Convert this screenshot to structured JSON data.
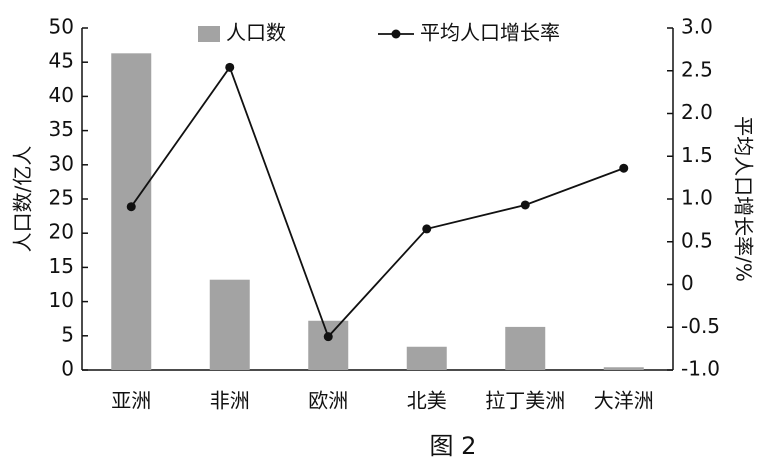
{
  "chart_data": {
    "type": "bar_line",
    "xlabel_caption": "图 2",
    "ylabel": "人口数/亿人",
    "y2label": "平均人口增长率/%",
    "categories": [
      "亚洲",
      "非洲",
      "欧洲",
      "北美",
      "拉丁美洲",
      "大洋洲"
    ],
    "series": [
      {
        "name": "人口数",
        "type": "bar",
        "color": "#a3a3a3",
        "values": [
          46.3,
          13.2,
          7.2,
          3.4,
          6.3,
          0.4
        ]
      },
      {
        "name": "平均人口增长率",
        "type": "line",
        "axis": "y2",
        "color": "#111111",
        "values": [
          0.91,
          2.54,
          -0.61,
          0.65,
          0.93,
          1.36
        ]
      }
    ],
    "ylim": [
      0,
      50
    ],
    "yticks": [
      0,
      5,
      10,
      15,
      20,
      25,
      30,
      35,
      40,
      45,
      50
    ],
    "y2lim": [
      -1.0,
      3.0
    ],
    "y2ticks": [
      {
        "value": -1.0,
        "label": "-1.0"
      },
      -0.5,
      0,
      0.5,
      {
        "value": 1.0,
        "label": "1.0"
      },
      1.5,
      {
        "value": 2.0,
        "label": "2.0"
      },
      2.5,
      {
        "value": 3.0,
        "label": "3.0"
      }
    ]
  }
}
